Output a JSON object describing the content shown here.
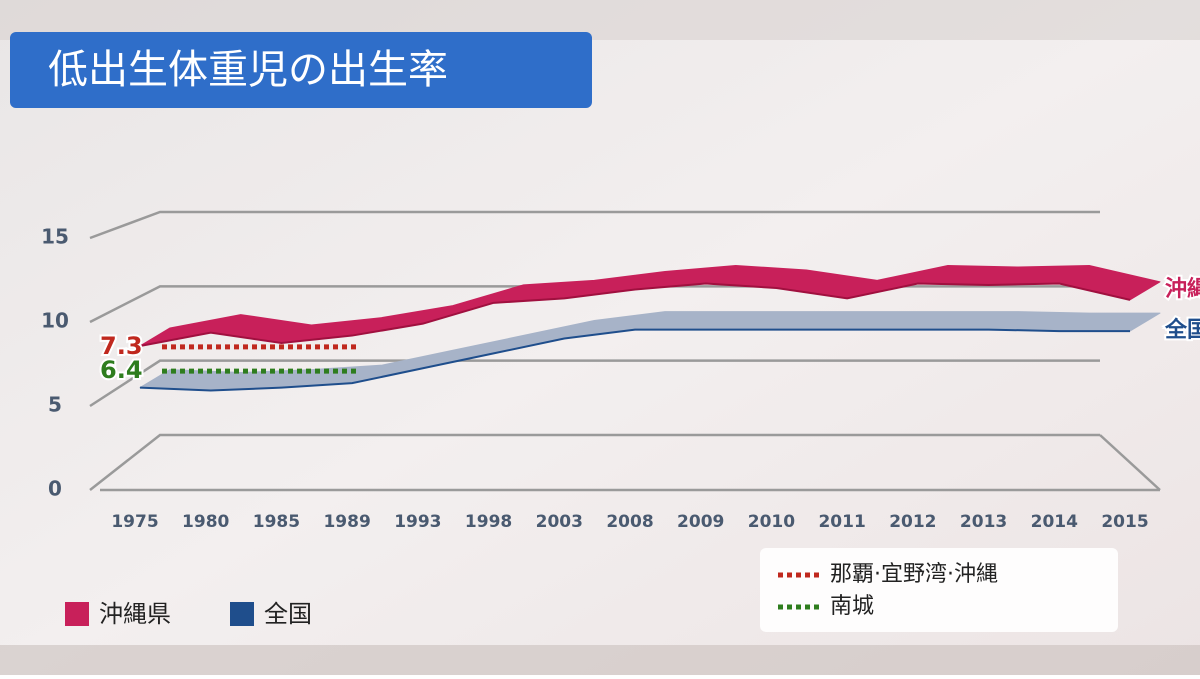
{
  "chart_data": {
    "type": "line",
    "title": "低出生体重児の出生率",
    "categories": [
      "1975",
      "1980",
      "1985",
      "1989",
      "1993",
      "1998",
      "2003",
      "2008",
      "2009",
      "2010",
      "2011",
      "2012",
      "2013",
      "2014",
      "2015"
    ],
    "series": [
      {
        "name": "沖縄県",
        "end_label": "沖縄",
        "color": "#c8205a",
        "values": [
          7.2,
          8.1,
          7.4,
          7.9,
          8.7,
          10.1,
          10.4,
          11.0,
          11.4,
          11.1,
          10.4,
          11.4,
          11.3,
          11.4,
          10.3
        ]
      },
      {
        "name": "全国",
        "end_label": "全国",
        "color": "#1f4e8c",
        "values": [
          4.4,
          4.2,
          4.4,
          4.7,
          5.7,
          6.7,
          7.7,
          8.3,
          8.3,
          8.3,
          8.3,
          8.3,
          8.3,
          8.2,
          8.2
        ]
      }
    ],
    "reference_lines": [
      {
        "name": "那覇·宜野湾·沖縄",
        "value": 7.3,
        "color": "#c0281e"
      },
      {
        "name": "南城",
        "value": 6.4,
        "color": "#2e7d1e"
      }
    ],
    "ylim": [
      0,
      15
    ],
    "yticks": [
      0,
      5,
      10,
      15
    ],
    "grid": true
  }
}
